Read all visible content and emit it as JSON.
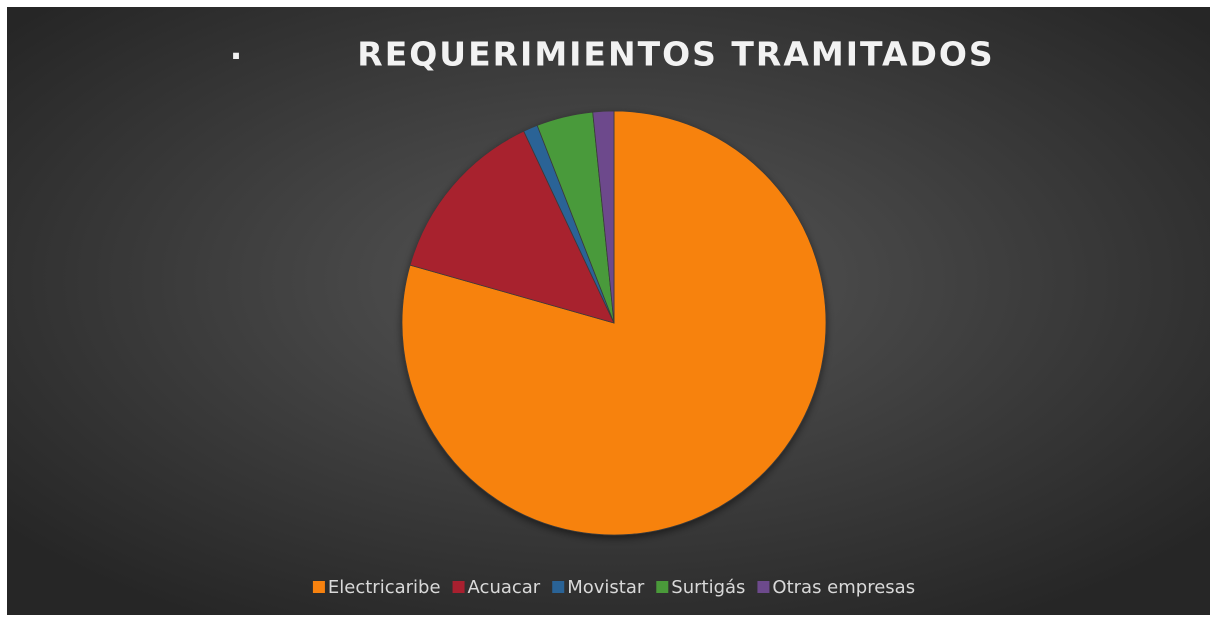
{
  "chart_data": {
    "type": "pie",
    "title": "REQUERIMIENTOS TRAMITADOS",
    "title_bullet": "·",
    "categories": [
      "Electricaribe",
      "Acuacar",
      "Movistar",
      "Surtigás",
      "Otras empresas"
    ],
    "values": [
      79.4,
      13.6,
      1.1,
      4.3,
      1.6
    ],
    "colors": [
      "#f7820f",
      "#a8202f",
      "#2a6396",
      "#4a9a3a",
      "#6d4a8c"
    ],
    "legend": "bottom"
  }
}
